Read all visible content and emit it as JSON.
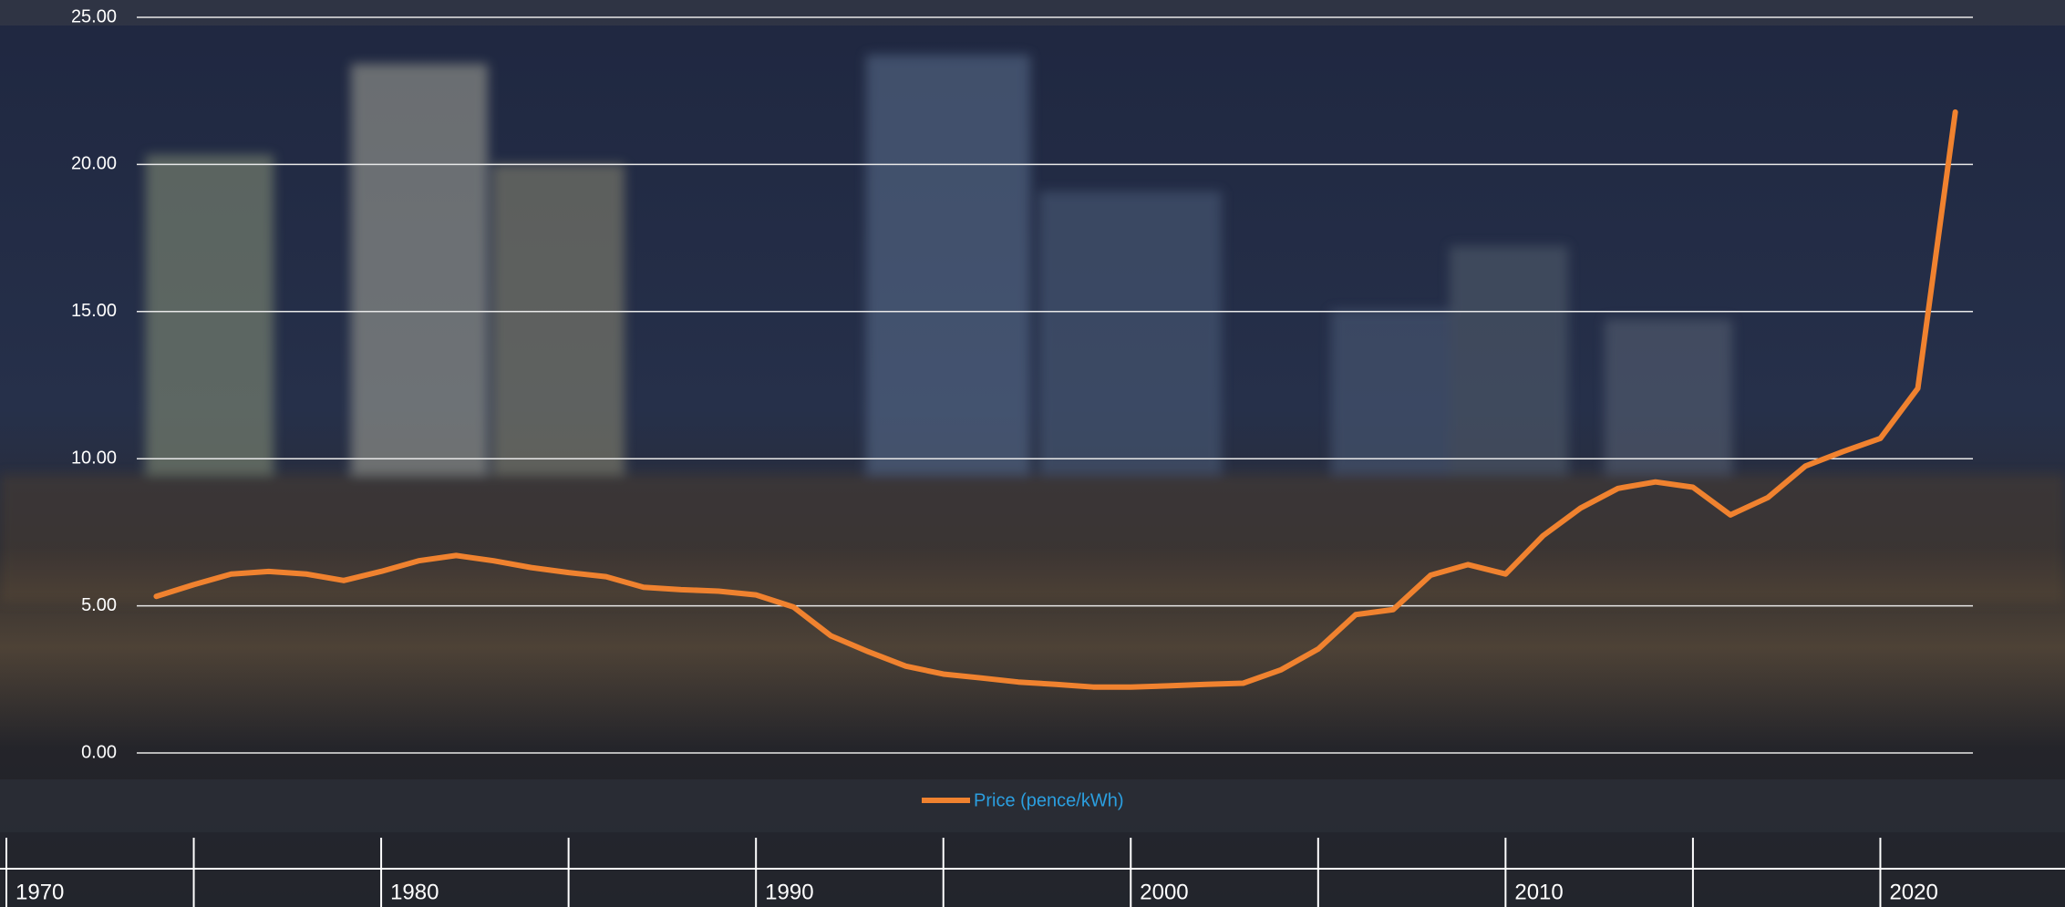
{
  "chart_data": {
    "type": "line",
    "x": [
      1974,
      1975,
      1976,
      1977,
      1978,
      1979,
      1980,
      1981,
      1982,
      1983,
      1984,
      1985,
      1986,
      1987,
      1988,
      1989,
      1990,
      1991,
      1992,
      1993,
      1994,
      1995,
      1996,
      1997,
      1998,
      1999,
      2000,
      2001,
      2002,
      2003,
      2004,
      2005,
      2006,
      2007,
      2008,
      2009,
      2010,
      2011,
      2012,
      2013,
      2014,
      2015,
      2016,
      2017,
      2018,
      2019,
      2020,
      2021,
      2022
    ],
    "series": [
      {
        "name": "Price (pence/kWh)",
        "color": "#f0822f",
        "values": [
          5.32,
          5.72,
          6.08,
          6.17,
          6.08,
          5.86,
          6.17,
          6.53,
          6.71,
          6.53,
          6.3,
          6.13,
          5.99,
          5.63,
          5.55,
          5.5,
          5.37,
          4.96,
          3.98,
          3.44,
          2.95,
          2.68,
          2.55,
          2.41,
          2.33,
          2.24,
          2.24,
          2.28,
          2.33,
          2.37,
          2.82,
          3.53,
          4.7,
          4.87,
          6.04,
          6.4,
          6.08,
          7.38,
          8.32,
          8.99,
          9.21,
          9.03,
          8.09,
          8.68,
          9.75,
          10.24,
          10.69,
          12.39,
          21.78
        ]
      }
    ],
    "xlim": [
      1970,
      2025
    ],
    "xticks": [
      1970,
      1980,
      1990,
      2000,
      2010,
      2020
    ],
    "xminorticks": [
      1975,
      1985,
      1995,
      2005,
      2015
    ],
    "ylim": [
      0,
      25
    ],
    "yticks": [
      {
        "value": 0,
        "label": "0.00"
      },
      {
        "value": 5,
        "label": "5.00"
      },
      {
        "value": 10,
        "label": "10.00"
      },
      {
        "value": 15,
        "label": "15.00"
      },
      {
        "value": 20,
        "label": "20.00"
      },
      {
        "value": 25,
        "label": "25.00"
      }
    ],
    "grid": true,
    "legend": "bottom"
  }
}
